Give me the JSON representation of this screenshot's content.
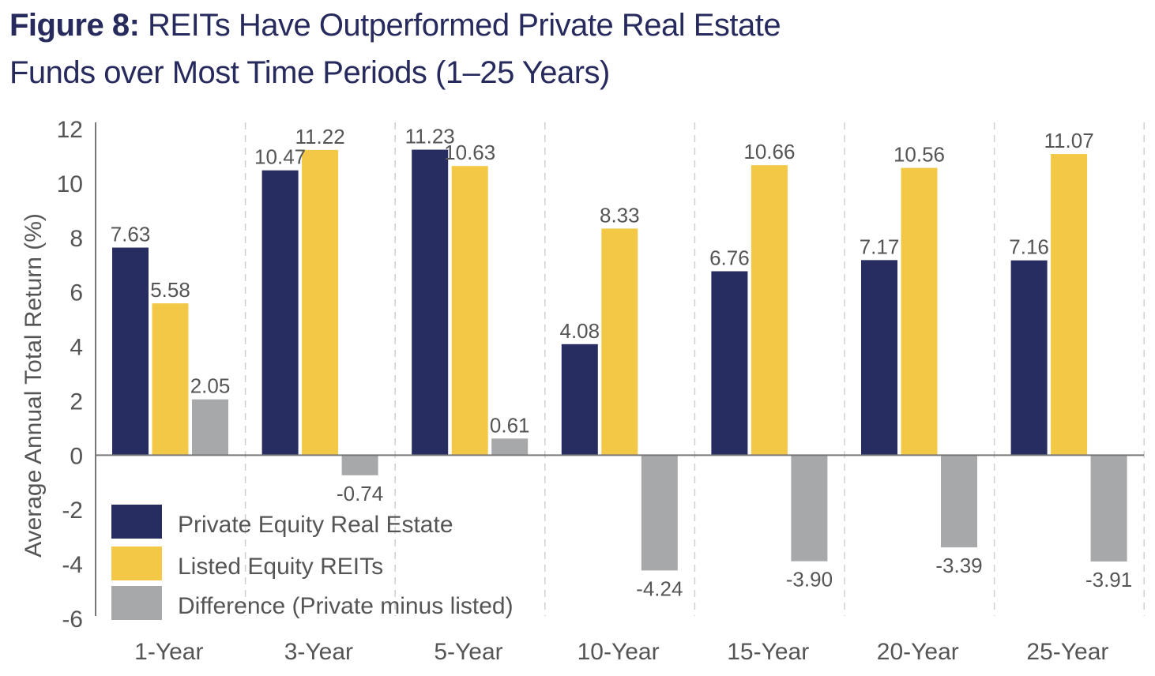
{
  "header": {
    "figure_label": "Figure 8:",
    "title_line1": "REITs Have Outperformed Private Real Estate",
    "title_line2": "Funds over Most Time Periods (1–25 Years)"
  },
  "colors": {
    "private": "#272d60",
    "listed": "#f3c846",
    "difference": "#a7a8aa",
    "title": "#262a5c",
    "text": "#555555"
  },
  "chart_data": {
    "type": "bar",
    "title": "REITs Have Outperformed Private Real Estate Funds over Most Time Periods (1–25 Years)",
    "xlabel": "",
    "ylabel": "Average Annual Total Return (%)",
    "ylim": [
      -6,
      12
    ],
    "yticks": [
      12,
      10,
      8,
      6,
      4,
      2,
      0,
      -2,
      -4,
      -6
    ],
    "grid": "vertical dashed separators between categories",
    "legend_position": "bottom-left",
    "categories": [
      "1-Year",
      "3-Year",
      "5-Year",
      "10-Year",
      "15-Year",
      "20-Year",
      "25-Year"
    ],
    "series": [
      {
        "name": "Private Equity Real Estate",
        "color_key": "private",
        "values": [
          7.63,
          10.47,
          11.23,
          4.08,
          6.76,
          7.17,
          7.16
        ],
        "labels": [
          "7.63",
          "10.47",
          "11.23",
          "4.08",
          "6.76",
          "7.17",
          "7.16"
        ]
      },
      {
        "name": "Listed Equity REITs",
        "color_key": "listed",
        "values": [
          5.58,
          11.22,
          10.63,
          8.33,
          10.66,
          10.56,
          11.07
        ],
        "labels": [
          "5.58",
          "11.22",
          "10.63",
          "8.33",
          "10.66",
          "10.56",
          "11.07"
        ]
      },
      {
        "name": "Difference (Private minus listed)",
        "color_key": "difference",
        "values": [
          2.05,
          -0.74,
          0.61,
          -4.24,
          -3.9,
          -3.39,
          -3.91
        ],
        "labels": [
          "2.05",
          "-0.74",
          "0.61",
          "-4.24",
          "-3.90",
          "-3.39",
          "-3.91"
        ]
      }
    ]
  }
}
